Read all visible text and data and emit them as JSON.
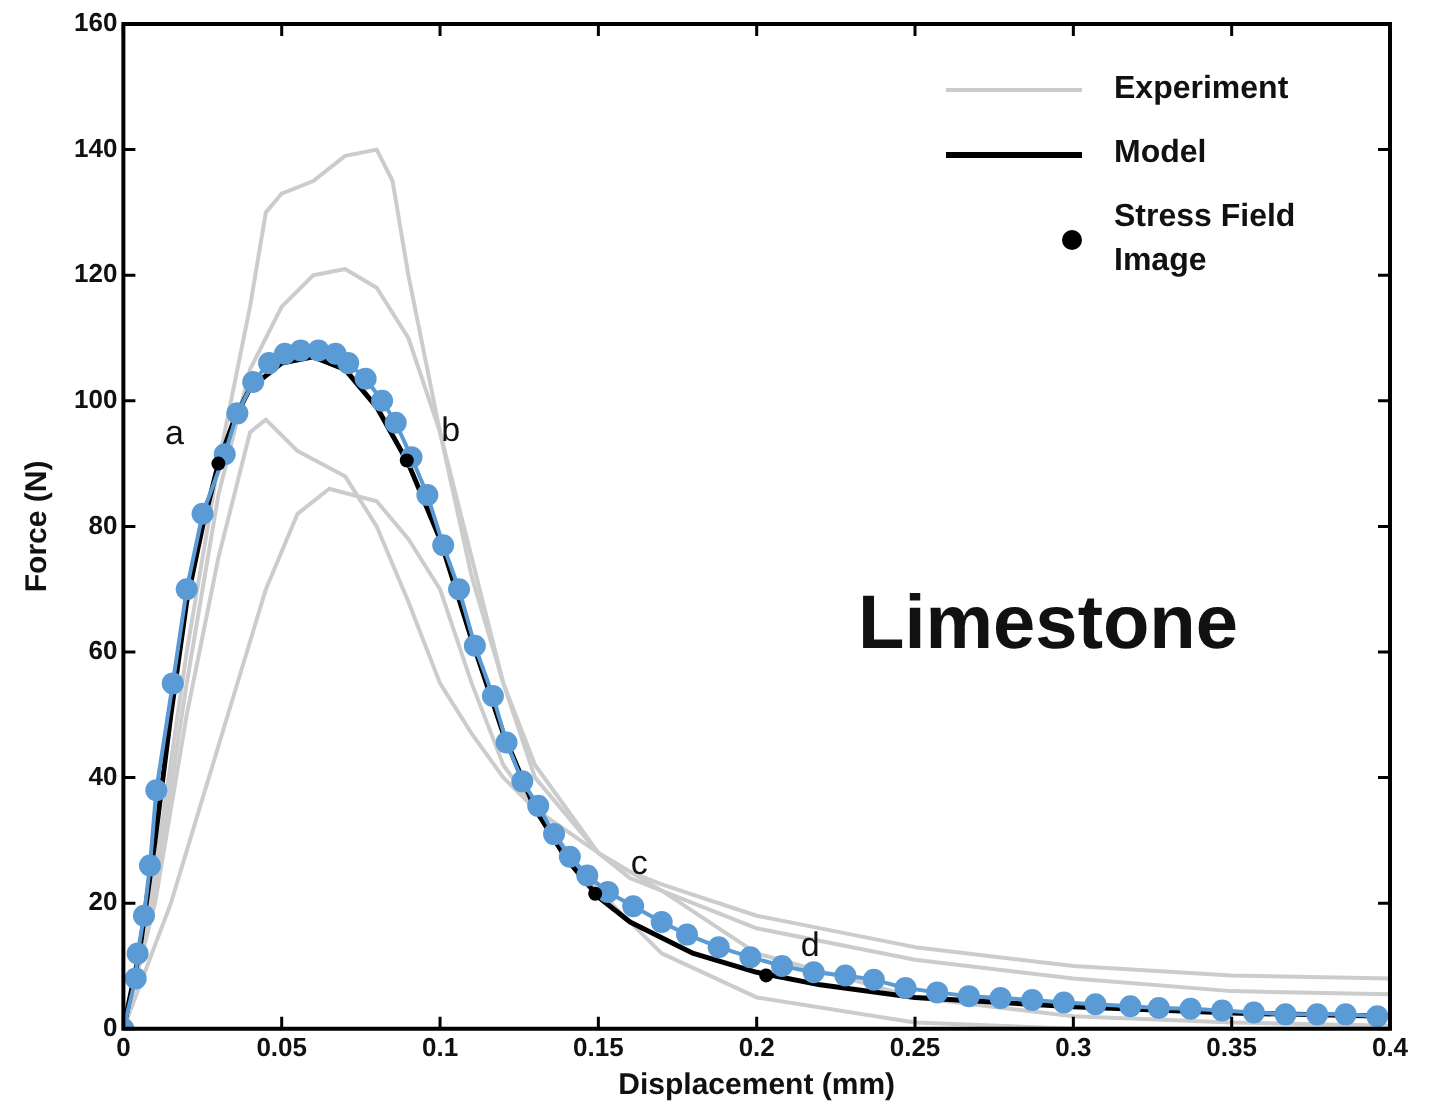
{
  "chart_data": {
    "type": "line",
    "xlabel": "Displacement (mm)",
    "ylabel": "Force (N)",
    "xlim": [
      0,
      0.4
    ],
    "ylim": [
      0,
      160
    ],
    "xticks": [
      0,
      0.05,
      0.1,
      0.15,
      0.2,
      0.25,
      0.3,
      0.35,
      0.4
    ],
    "yticks": [
      0,
      20,
      40,
      60,
      80,
      100,
      120,
      140,
      160
    ],
    "grid": false,
    "legend": "top right",
    "line_style": "solid",
    "annotations": [
      "Limestone",
      {
        "text": "a",
        "x": 0.03,
        "y": 90
      },
      {
        "text": "b",
        "x": 0.0895,
        "y": 90.5
      },
      {
        "text": "c",
        "x": 0.149,
        "y": 21.5
      },
      {
        "text": "d",
        "x": 0.203,
        "y": 8.5
      }
    ],
    "series": [
      {
        "name": "Experiment",
        "marker": "none",
        "color": "#cccccc",
        "x": [
          0,
          0.01,
          0.02,
          0.03,
          0.04,
          0.045,
          0.05,
          0.06,
          0.07,
          0.08,
          0.085,
          0.09,
          0.1,
          0.11,
          0.12,
          0.13,
          0.15,
          0.16,
          0.17,
          0.2,
          0.25,
          0.3,
          0.35,
          0.4
        ],
        "values": [
          0,
          25,
          60,
          90,
          115,
          130,
          133,
          135,
          139,
          140,
          135,
          120,
          95,
          75,
          55,
          42,
          28,
          25,
          23,
          18,
          13,
          10,
          8.5,
          8
        ]
      },
      {
        "marker": "none",
        "color": "#cccccc",
        "x": [
          0,
          0.01,
          0.02,
          0.03,
          0.04,
          0.05,
          0.06,
          0.07,
          0.08,
          0.09,
          0.1,
          0.11,
          0.12,
          0.13,
          0.15,
          0.16,
          0.2,
          0.25,
          0.3,
          0.35,
          0.4
        ],
        "values": [
          0,
          22,
          55,
          85,
          105,
          115,
          120,
          121,
          118,
          110,
          95,
          72,
          55,
          40,
          28,
          24,
          16,
          11,
          8,
          6,
          5.5
        ]
      },
      {
        "marker": "none",
        "color": "#cccccc",
        "x": [
          0,
          0.01,
          0.02,
          0.03,
          0.04,
          0.045,
          0.055,
          0.07,
          0.08,
          0.09,
          0.1,
          0.11,
          0.12,
          0.13,
          0.15,
          0.17,
          0.2,
          0.25,
          0.3,
          0.35,
          0.4
        ],
        "values": [
          0,
          20,
          50,
          75,
          95,
          97,
          92,
          88,
          80,
          68,
          55,
          47,
          40,
          35,
          28,
          22,
          12,
          5,
          2,
          1,
          0.5
        ]
      },
      {
        "marker": "none",
        "color": "#cccccc",
        "x": [
          0,
          0.015,
          0.03,
          0.045,
          0.055,
          0.065,
          0.08,
          0.09,
          0.1,
          0.11,
          0.12,
          0.13,
          0.15,
          0.17,
          0.2,
          0.25,
          0.3,
          0.4
        ],
        "values": [
          0,
          20,
          45,
          70,
          82,
          86,
          84,
          78,
          70,
          55,
          42,
          35,
          22,
          12,
          5,
          1,
          0,
          0
        ]
      },
      {
        "name": "Model",
        "marker": "none",
        "color": "#000000",
        "x": [
          0,
          0.005,
          0.01,
          0.015,
          0.02,
          0.025,
          0.03,
          0.035,
          0.04,
          0.05,
          0.06,
          0.07,
          0.08,
          0.09,
          0.1,
          0.11,
          0.12,
          0.13,
          0.14,
          0.15,
          0.16,
          0.18,
          0.2,
          0.22,
          0.25,
          0.3,
          0.35,
          0.4
        ],
        "values": [
          0,
          12,
          30,
          50,
          68,
          80,
          90,
          97,
          102,
          106,
          107,
          105,
          99,
          90,
          78,
          62,
          47,
          35,
          27,
          21,
          17,
          12,
          9,
          7,
          5,
          3.5,
          2.5,
          2
        ]
      },
      {
        "marker": "circle",
        "color": "#5b9bd5",
        "x": [
          0,
          0.0039,
          0.0045,
          0.0065,
          0.0084,
          0.0104,
          0.0156,
          0.02,
          0.025,
          0.032,
          0.036,
          0.041,
          0.046,
          0.051,
          0.056,
          0.0616,
          0.067,
          0.071,
          0.0765,
          0.0817,
          0.086,
          0.091,
          0.096,
          0.101,
          0.106,
          0.111,
          0.1167,
          0.121,
          0.126,
          0.131,
          0.136,
          0.141,
          0.1465,
          0.153,
          0.161,
          0.17,
          0.178,
          0.188,
          0.198,
          0.208,
          0.218,
          0.228,
          0.237,
          0.247,
          0.257,
          0.267,
          0.277,
          0.287,
          0.297,
          0.307,
          0.318,
          0.327,
          0.337,
          0.347,
          0.357,
          0.367,
          0.377,
          0.386,
          0.396
        ],
        "values": [
          0,
          8,
          12,
          18,
          26,
          38,
          55,
          70,
          82,
          91.5,
          98,
          103,
          106,
          107.5,
          108,
          108,
          107.5,
          106,
          103.5,
          100,
          96.5,
          91,
          85,
          77,
          70,
          61,
          53,
          45.6,
          39.4,
          35.5,
          31,
          27.4,
          24.4,
          21.8,
          19.5,
          17,
          15,
          13,
          11.4,
          10,
          9,
          8.5,
          7.8,
          6.5,
          5.8,
          5.2,
          4.9,
          4.6,
          4.2,
          3.9,
          3.6,
          3.3,
          3.2,
          2.9,
          2.6,
          2.3,
          2.3,
          2.3,
          2
        ]
      },
      {
        "name": "Stress Field Image",
        "type": "scatter",
        "marker": "circle",
        "color": "#000000",
        "x": [
          0.03,
          0.0895,
          0.149,
          0.203
        ],
        "values": [
          90,
          90.5,
          21.5,
          8.5
        ]
      }
    ]
  }
}
